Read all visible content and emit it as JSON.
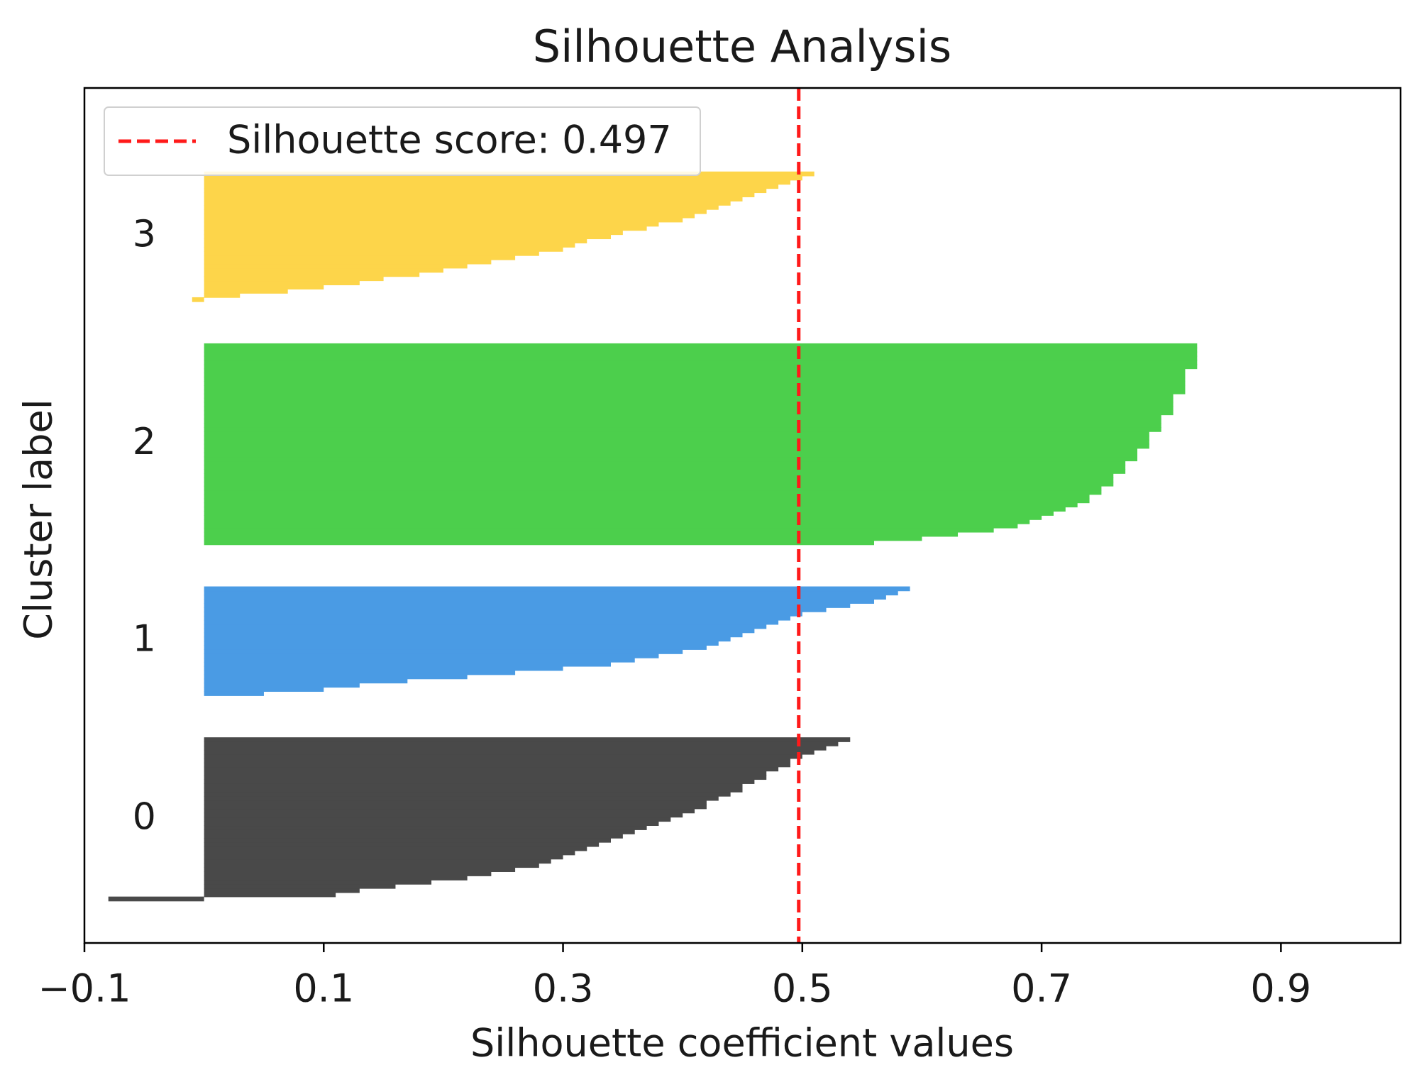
{
  "chart_data": {
    "type": "silhouette",
    "title": "Silhouette Analysis",
    "x_label": "Silhouette coefficient values",
    "y_label": "Cluster label",
    "xlim": [
      -0.1,
      1.0
    ],
    "xticks": [
      {
        "value": -0.1,
        "label": "−0.1"
      },
      0.1,
      0.3,
      0.5,
      0.7,
      0.9
    ],
    "ylim": [
      0,
      204
    ],
    "reference_line": {
      "value": 0.497,
      "label": "Silhouette score: 0.497",
      "color": "#ff1a1a"
    },
    "series": [
      {
        "name": "0",
        "color": "#494949",
        "values": [
          -0.08,
          0.11,
          0.13,
          0.16,
          0.19,
          0.22,
          0.24,
          0.26,
          0.28,
          0.29,
          0.3,
          0.31,
          0.32,
          0.33,
          0.34,
          0.35,
          0.36,
          0.37,
          0.38,
          0.39,
          0.4,
          0.41,
          0.42,
          0.42,
          0.43,
          0.44,
          0.45,
          0.45,
          0.46,
          0.47,
          0.47,
          0.48,
          0.49,
          0.49,
          0.5,
          0.51,
          0.52,
          0.53,
          0.54
        ]
      },
      {
        "name": "1",
        "color": "#4a9be4",
        "values": [
          0.05,
          0.1,
          0.13,
          0.17,
          0.22,
          0.26,
          0.3,
          0.34,
          0.36,
          0.38,
          0.4,
          0.42,
          0.43,
          0.44,
          0.45,
          0.46,
          0.47,
          0.48,
          0.49,
          0.5,
          0.52,
          0.54,
          0.56,
          0.57,
          0.58,
          0.59
        ]
      },
      {
        "name": "2",
        "color": "#4ccf4c",
        "values": [
          0.56,
          0.6,
          0.63,
          0.66,
          0.68,
          0.69,
          0.7,
          0.71,
          0.72,
          0.73,
          0.74,
          0.74,
          0.75,
          0.75,
          0.76,
          0.76,
          0.76,
          0.77,
          0.77,
          0.77,
          0.78,
          0.78,
          0.78,
          0.79,
          0.79,
          0.79,
          0.79,
          0.8,
          0.8,
          0.8,
          0.8,
          0.81,
          0.81,
          0.81,
          0.81,
          0.81,
          0.82,
          0.82,
          0.82,
          0.82,
          0.82,
          0.82,
          0.83,
          0.83,
          0.83,
          0.83,
          0.83,
          0.83
        ]
      },
      {
        "name": "3",
        "color": "#fdd54a",
        "values": [
          -0.01,
          0.03,
          0.07,
          0.1,
          0.13,
          0.15,
          0.18,
          0.2,
          0.22,
          0.24,
          0.26,
          0.28,
          0.3,
          0.31,
          0.32,
          0.34,
          0.35,
          0.37,
          0.38,
          0.4,
          0.41,
          0.42,
          0.43,
          0.44,
          0.45,
          0.46,
          0.47,
          0.48,
          0.49,
          0.5,
          0.51
        ]
      }
    ]
  }
}
